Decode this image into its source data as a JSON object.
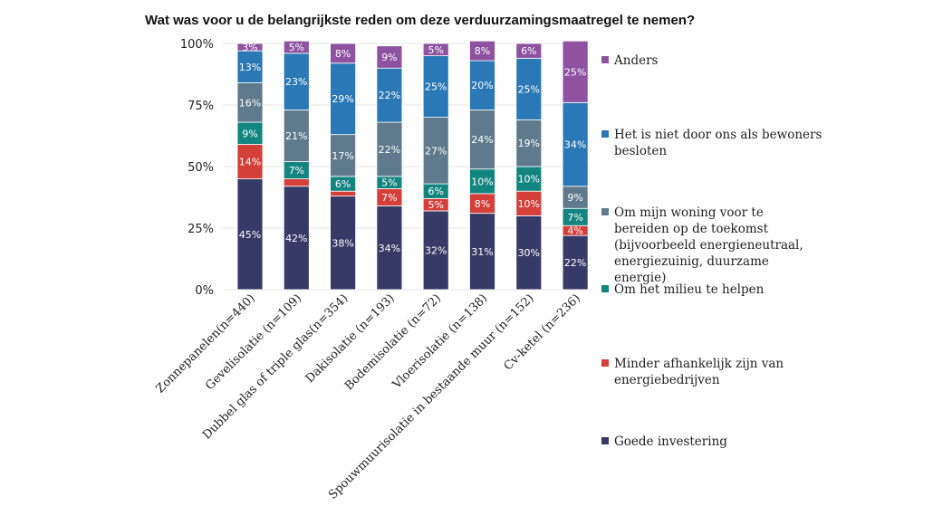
{
  "chart_data": {
    "type": "bar",
    "stacked": true,
    "title": "Wat was voor u de belangrijkste reden om deze verduurzamingsmaatregel te nemen?",
    "xlabel": "",
    "ylabel": "",
    "ylim": [
      0,
      100
    ],
    "yticks": [
      "0%",
      "25%",
      "50%",
      "75%",
      "100%"
    ],
    "categories": [
      "Zonnepanelen(n=440)",
      "Gevelisolatie (n=109)",
      "Dubbel glas of triple glas(n=354)",
      "Dakisolatie (n=193)",
      "Bodemisolatie (n=72)",
      "Vloerisolatie (n=138)",
      "Spouwmuurisolatie in bestaande muur (n=152)",
      "Cv-ketel (n=236)"
    ],
    "series": [
      {
        "name": "Goede investering",
        "color": "#363a67",
        "values": [
          45,
          42,
          38,
          34,
          32,
          31,
          30,
          22
        ],
        "labels": [
          "45%",
          "42%",
          "38%",
          "34%",
          "32%",
          "31%",
          "30%",
          "22%"
        ]
      },
      {
        "name": "Minder afhankelijk zijn van energiebedrijven",
        "color": "#d43f3a",
        "values": [
          14,
          3,
          2,
          7,
          5,
          8,
          10,
          4
        ],
        "labels": [
          "14%",
          "",
          "",
          "7%",
          "5%",
          "8%",
          "10%",
          "4%"
        ]
      },
      {
        "name": "Om het milieu te helpen",
        "color": "#138580",
        "values": [
          9,
          7,
          6,
          5,
          6,
          10,
          10,
          7
        ],
        "labels": [
          "9%",
          "7%",
          "6%",
          "5%",
          "6%",
          "10%",
          "10%",
          "7%"
        ]
      },
      {
        "name": "Om mijn woning voor te bereiden op de toekomst (bijvoorbeeld energieneutraal, energiezuinig, duurzame energie)",
        "color": "#5f7a8c",
        "values": [
          16,
          21,
          17,
          22,
          27,
          24,
          19,
          9
        ],
        "labels": [
          "16%",
          "21%",
          "17%",
          "22%",
          "27%",
          "24%",
          "19%",
          "9%"
        ]
      },
      {
        "name": "Het is niet door ons als bewoners besloten",
        "color": "#2a78b5",
        "values": [
          13,
          23,
          29,
          22,
          25,
          20,
          25,
          34
        ],
        "labels": [
          "13%",
          "23%",
          "29%",
          "22%",
          "25%",
          "20%",
          "25%",
          "34%"
        ]
      },
      {
        "name": "Anders",
        "color": "#8e52a1",
        "values": [
          3,
          5,
          8,
          9,
          5,
          8,
          6,
          25
        ],
        "labels": [
          "3%",
          "5%",
          "8%",
          "9%",
          "5%",
          "8%",
          "6%",
          "25%"
        ]
      }
    ],
    "legend": [
      {
        "label_lines": [
          "Anders"
        ],
        "color": "#8e52a1"
      },
      {
        "label_lines": [
          "Het is niet door ons als bewoners",
          "besloten"
        ],
        "color": "#2a78b5"
      },
      {
        "label_lines": [
          "Om mijn woning voor te",
          "bereiden op de toekomst",
          "(bijvoorbeeld energieneutraal,",
          "energiezuinig, duurzame",
          "energie)"
        ],
        "color": "#5f7a8c"
      },
      {
        "label_lines": [
          "Om het milieu te helpen"
        ],
        "color": "#138580"
      },
      {
        "label_lines": [
          "Minder afhankelijk zijn van",
          "energiebedrijven"
        ],
        "color": "#d43f3a"
      },
      {
        "label_lines": [
          "Goede investering"
        ],
        "color": "#363a67"
      }
    ],
    "legend_position": "right"
  }
}
